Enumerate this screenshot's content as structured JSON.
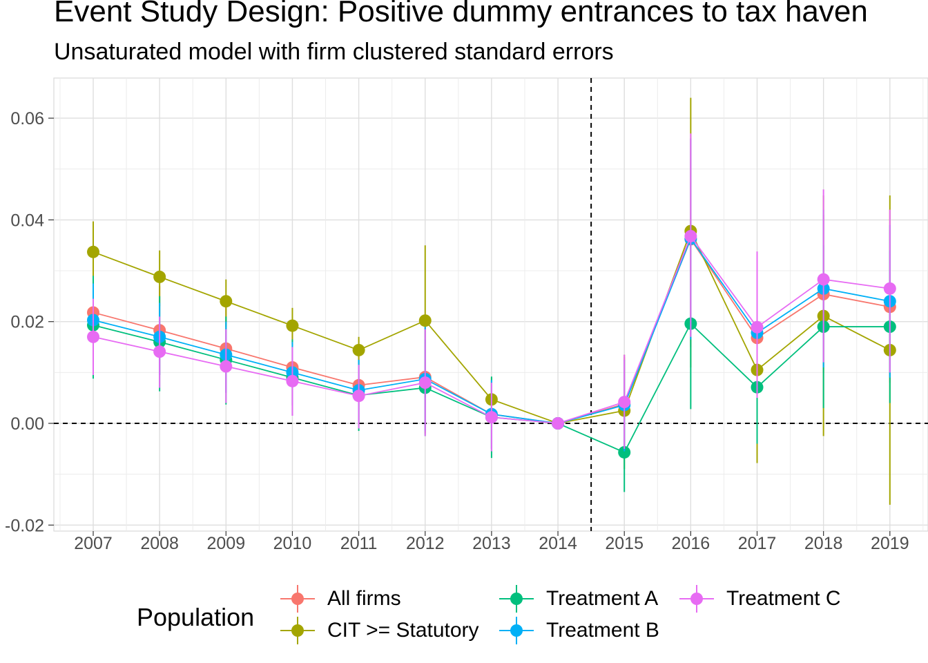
{
  "chart_data": {
    "type": "line",
    "title": "Event Study Design: Positive dummy entrances to tax haven",
    "subtitle": "Unsaturated model with firm clustered standard errors",
    "xlabel": "",
    "ylabel": "",
    "categories": [
      "2007",
      "2008",
      "2009",
      "2010",
      "2011",
      "2012",
      "2013",
      "2014",
      "2015",
      "2016",
      "2017",
      "2018",
      "2019"
    ],
    "ylim": [
      -0.02,
      0.068
    ],
    "y_ticks": [
      "-0.02",
      "0.00",
      "0.02",
      "0.04",
      "0.06"
    ],
    "y_tick_values": [
      -0.02,
      0.0,
      0.02,
      0.04,
      0.06
    ],
    "reference_lines": {
      "horizontal_y": 0.0,
      "vertical_between": [
        "2014",
        "2015"
      ]
    },
    "grid": true,
    "legend": {
      "title": "Population",
      "position": "bottom"
    },
    "series": [
      {
        "name": "All firms",
        "color": "#F8766D",
        "values": [
          0.0218,
          0.0183,
          0.0147,
          0.011,
          0.0075,
          0.0091,
          0.0018,
          0.0,
          0.0038,
          0.0362,
          0.0168,
          0.0254,
          0.0229
        ],
        "lower": [
          0.012,
          0.0095,
          0.006,
          0.0035,
          0.0,
          -0.002,
          -0.005,
          0.0,
          -0.006,
          0.015,
          0.005,
          0.01,
          0.008
        ],
        "upper": [
          0.031,
          0.027,
          0.023,
          0.018,
          0.014,
          0.02,
          0.0085,
          0.0,
          0.013,
          0.056,
          0.029,
          0.041,
          0.038
        ]
      },
      {
        "name": "CIT >= Statutory",
        "color": "#A3A500",
        "values": [
          0.0337,
          0.0288,
          0.024,
          0.0192,
          0.0144,
          0.0202,
          0.0047,
          0.0,
          0.0025,
          0.0378,
          0.0105,
          0.0211,
          0.0144
        ],
        "lower": [
          0.027,
          0.023,
          0.019,
          0.0155,
          0.0115,
          0.005,
          0.0,
          0.0,
          -0.009,
          0.011,
          -0.0078,
          -0.0025,
          -0.016
        ],
        "upper": [
          0.0397,
          0.034,
          0.0283,
          0.0227,
          0.017,
          0.035,
          0.009,
          0.0,
          0.0135,
          0.064,
          0.029,
          0.0448,
          0.0448
        ]
      },
      {
        "name": "Treatment A",
        "color": "#00BF7D",
        "values": [
          0.0193,
          0.016,
          0.0125,
          0.009,
          0.0055,
          0.007,
          0.0012,
          0.0,
          -0.0057,
          0.0196,
          0.0071,
          0.019,
          0.019
        ],
        "lower": [
          0.0088,
          0.0063,
          0.0037,
          0.0015,
          -0.0015,
          -0.0025,
          -0.0068,
          0.0,
          -0.0135,
          0.0028,
          -0.004,
          0.003,
          0.004
        ],
        "upper": [
          0.029,
          0.025,
          0.021,
          0.0165,
          0.0125,
          0.0165,
          0.0092,
          0.0,
          0.002,
          0.036,
          0.018,
          0.035,
          0.034
        ]
      },
      {
        "name": "Treatment B",
        "color": "#00B0F6",
        "values": [
          0.0203,
          0.017,
          0.0135,
          0.01,
          0.0065,
          0.0087,
          0.0018,
          0.0,
          0.0036,
          0.0363,
          0.0178,
          0.0265,
          0.024
        ],
        "lower": [
          0.012,
          0.0095,
          0.006,
          0.0035,
          0.0,
          -0.0015,
          -0.005,
          0.0,
          -0.0055,
          0.0165,
          0.006,
          0.011,
          0.009
        ],
        "upper": [
          0.0275,
          0.0237,
          0.02,
          0.016,
          0.0125,
          0.019,
          0.0085,
          0.0,
          0.0125,
          0.056,
          0.0295,
          0.042,
          0.039
        ]
      },
      {
        "name": "Treatment C",
        "color": "#E76BF3",
        "values": [
          0.017,
          0.0141,
          0.0112,
          0.0083,
          0.0054,
          0.008,
          0.0012,
          0.0,
          0.0042,
          0.0368,
          0.0189,
          0.0283,
          0.0265
        ],
        "lower": [
          0.0095,
          0.007,
          0.004,
          0.0015,
          -0.001,
          -0.0025,
          -0.0055,
          0.0,
          -0.005,
          0.017,
          0.005,
          0.012,
          0.01
        ],
        "upper": [
          0.0245,
          0.021,
          0.0185,
          0.015,
          0.0115,
          0.0185,
          0.008,
          0.0,
          0.0135,
          0.057,
          0.0338,
          0.046,
          0.042
        ]
      }
    ]
  }
}
